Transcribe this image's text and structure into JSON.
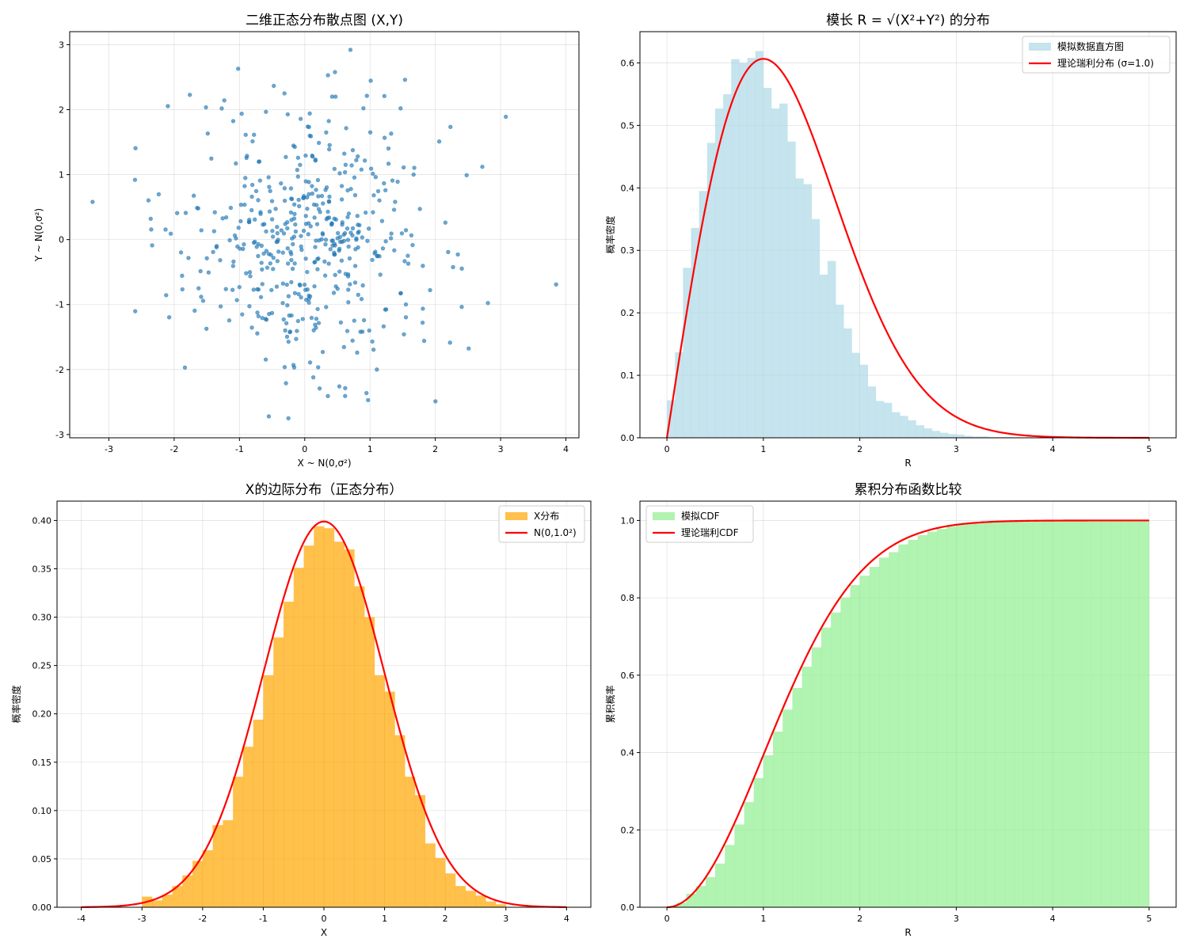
{
  "chart_data": [
    {
      "id": "scatter",
      "type": "scatter",
      "title": "二维正态分布散点图 (X,Y)",
      "xlabel": "X ~ N(0,σ²)",
      "ylabel": "Y ~ N(0,σ²)",
      "xlim": [
        -3.6,
        4.2
      ],
      "ylim": [
        -3.05,
        3.2
      ],
      "xticks": [
        -3,
        -2,
        -1,
        0,
        1,
        2,
        3,
        4
      ],
      "yticks": [
        -3,
        -2,
        -1,
        0,
        1,
        2,
        3
      ],
      "grid": true,
      "color": "#1f77b4",
      "sigma": 1.0,
      "n_points": 500,
      "extreme_points": [
        [
          -3.25,
          0.58
        ],
        [
          3.85,
          -0.69
        ],
        [
          3.08,
          1.89
        ],
        [
          0.7,
          2.92
        ],
        [
          -1.02,
          2.63
        ],
        [
          -0.25,
          -2.75
        ],
        [
          0.97,
          -2.47
        ],
        [
          -0.55,
          -2.72
        ],
        [
          2.72,
          1.12
        ],
        [
          -2.6,
          0.92
        ]
      ]
    },
    {
      "id": "rayleigh-pdf",
      "type": "bar",
      "title": "模长 R = √(X²+Y²) 的分布",
      "xlabel": "R",
      "ylabel": "概率密度",
      "xlim": [
        -0.28,
        5.28
      ],
      "ylim": [
        0,
        0.65
      ],
      "xticks": [
        0,
        1,
        2,
        3,
        4,
        5
      ],
      "yticks": [
        0.0,
        0.1,
        0.2,
        0.3,
        0.4,
        0.5,
        0.6
      ],
      "grid": true,
      "legend": {
        "position": "top-right",
        "entries": [
          {
            "label": "模拟数据直方图",
            "kind": "patch",
            "color": "#add8e6"
          },
          {
            "label": "理论瑞利分布 (σ=1.0)",
            "kind": "line",
            "color": "#ff0000"
          }
        ]
      },
      "hist": {
        "bin_start": 0.0,
        "bin_width": 0.0833,
        "values": [
          0.06,
          0.137,
          0.272,
          0.336,
          0.395,
          0.472,
          0.527,
          0.55,
          0.606,
          0.6,
          0.608,
          0.619,
          0.56,
          0.527,
          0.535,
          0.474,
          0.415,
          0.406,
          0.35,
          0.261,
          0.283,
          0.213,
          0.175,
          0.136,
          0.117,
          0.082,
          0.059,
          0.056,
          0.041,
          0.035,
          0.028,
          0.02,
          0.015,
          0.011,
          0.008,
          0.006,
          0.005,
          0.003,
          0.002,
          0.002,
          0.001,
          0.001,
          0.001,
          0.0
        ],
        "color": "#add8e6"
      },
      "curve": {
        "name": "理论瑞利分布 (σ=1.0)",
        "color": "#ff0000",
        "function": "rayleigh_pdf",
        "sigma": 1.0,
        "x_range": [
          0,
          5
        ]
      }
    },
    {
      "id": "marginal-x",
      "type": "bar",
      "title": "X的边际分布（正态分布）",
      "xlabel": "X",
      "ylabel": "概率密度",
      "xlim": [
        -4.4,
        4.4
      ],
      "ylim": [
        0,
        0.42
      ],
      "xticks": [
        -4,
        -3,
        -2,
        -1,
        0,
        1,
        2,
        3,
        4
      ],
      "yticks": [
        0.0,
        0.05,
        0.1,
        0.15,
        0.2,
        0.25,
        0.3,
        0.35,
        0.4
      ],
      "grid": true,
      "legend": {
        "position": "top-right",
        "entries": [
          {
            "label": "X分布",
            "kind": "patch",
            "color": "#ffa500"
          },
          {
            "label": "N(0,1.0²)",
            "kind": "line",
            "color": "#ff0000"
          }
        ]
      },
      "hist": {
        "bin_start": -3.0,
        "bin_width": 0.1667,
        "values": [
          0.011,
          0.007,
          0.013,
          0.022,
          0.033,
          0.048,
          0.059,
          0.085,
          0.09,
          0.135,
          0.166,
          0.194,
          0.24,
          0.279,
          0.316,
          0.351,
          0.374,
          0.394,
          0.392,
          0.378,
          0.37,
          0.332,
          0.3,
          0.24,
          0.223,
          0.178,
          0.135,
          0.116,
          0.066,
          0.051,
          0.035,
          0.022,
          0.017,
          0.012,
          0.006,
          0.003
        ],
        "color": "#ffa500"
      },
      "curve": {
        "name": "N(0,1.0²)",
        "color": "#ff0000",
        "function": "normal_pdf",
        "mu": 0.0,
        "sigma": 1.0,
        "x_range": [
          -4,
          4
        ]
      }
    },
    {
      "id": "cdf-compare",
      "type": "area",
      "title": "累积分布函数比较",
      "xlabel": "R",
      "ylabel": "累积概率",
      "xlim": [
        -0.28,
        5.28
      ],
      "ylim": [
        0,
        1.05
      ],
      "xticks": [
        0,
        1,
        2,
        3,
        4,
        5
      ],
      "yticks": [
        0.0,
        0.2,
        0.4,
        0.6,
        0.8,
        1.0
      ],
      "grid": true,
      "legend": {
        "position": "top-left",
        "entries": [
          {
            "label": "模拟CDF",
            "kind": "patch",
            "color": "#90ee90"
          },
          {
            "label": "理论瑞利CDF",
            "kind": "line",
            "color": "#ff0000"
          }
        ]
      },
      "hist": {
        "bin_start": 0.0,
        "bin_width": 0.1,
        "values": [
          0.003,
          0.012,
          0.035,
          0.055,
          0.078,
          0.113,
          0.161,
          0.214,
          0.272,
          0.334,
          0.393,
          0.454,
          0.511,
          0.567,
          0.622,
          0.672,
          0.723,
          0.762,
          0.801,
          0.833,
          0.857,
          0.88,
          0.904,
          0.918,
          0.938,
          0.95,
          0.962,
          0.971,
          0.978,
          0.984,
          0.989,
          0.992,
          0.995,
          0.997,
          0.998,
          0.999,
          0.999,
          1.0,
          1.0,
          1.0,
          1.0,
          1.0,
          1.0,
          1.0,
          1.0,
          1.0,
          1.0,
          1.0,
          1.0,
          1.0
        ],
        "color": "#90ee90"
      },
      "curve": {
        "name": "理论瑞利CDF",
        "color": "#ff0000",
        "function": "rayleigh_cdf",
        "sigma": 1.0,
        "x_range": [
          0,
          5
        ]
      }
    }
  ]
}
